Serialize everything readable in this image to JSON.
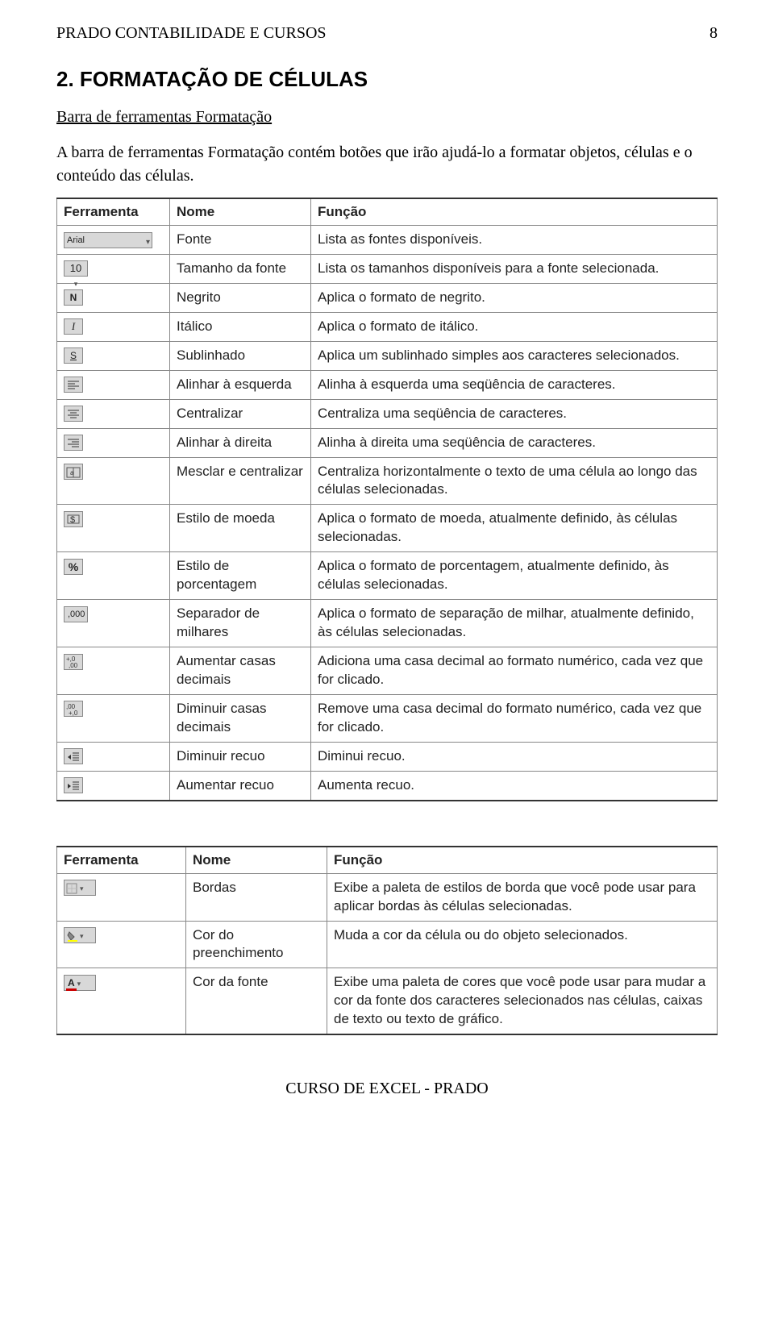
{
  "header": {
    "title": "PRADO CONTABILIDADE E CURSOS",
    "page_number": "8"
  },
  "section": {
    "title": "2. FORMATAÇÃO DE CÉLULAS",
    "toolbar_link": "Barra de ferramentas Formatação",
    "intro": "A barra de ferramentas Formatação contém botões que irão ajudá-lo a formatar objetos, células e o conteúdo das células."
  },
  "table1": {
    "headers": {
      "tool": "Ferramenta",
      "name": "Nome",
      "func": "Função"
    },
    "rows": [
      {
        "icon": "font-select",
        "icon_text": "Arial",
        "name": "Fonte",
        "func": "Lista as fontes disponíveis."
      },
      {
        "icon": "size-select",
        "icon_text": "10",
        "name": "Tamanho da fonte",
        "func": "Lista os tamanhos disponíveis para a fonte selecionada."
      },
      {
        "icon": "bold",
        "icon_text": "N",
        "name": "Negrito",
        "func": "Aplica o formato de negrito."
      },
      {
        "icon": "italic",
        "icon_text": "I",
        "name": "Itálico",
        "func": "Aplica o formato de itálico."
      },
      {
        "icon": "underline",
        "icon_text": "S",
        "name": "Sublinhado",
        "func": "Aplica um sublinhado simples aos caracteres selecionados."
      },
      {
        "icon": "align-left",
        "name": "Alinhar à esquerda",
        "func": "Alinha à esquerda uma seqüência de caracteres."
      },
      {
        "icon": "align-center",
        "name": "Centralizar",
        "func": "Centraliza uma seqüência de caracteres."
      },
      {
        "icon": "align-right",
        "name": "Alinhar à direita",
        "func": "Alinha à direita uma seqüência de caracteres."
      },
      {
        "icon": "merge-center",
        "name": "Mesclar e centralizar",
        "func": "Centraliza horizontalmente o texto de uma célula ao longo das células selecionadas."
      },
      {
        "icon": "currency",
        "name": "Estilo de moeda",
        "func": "Aplica o formato de moeda, atualmente definido, às células selecionadas."
      },
      {
        "icon": "percent",
        "icon_text": "%",
        "name": "Estilo de porcentagem",
        "func": "Aplica o formato de porcentagem, atualmente definido, às células selecionadas."
      },
      {
        "icon": "thousand",
        "icon_text": ",000",
        "name": "Separador de milhares",
        "func": "Aplica o formato de separação de milhar, atualmente definido, às células selecionadas."
      },
      {
        "icon": "inc-dec",
        "name": "Aumentar casas decimais",
        "func": "Adiciona uma casa decimal ao formato numérico, cada vez que for clicado."
      },
      {
        "icon": "dec-dec",
        "name": "Diminuir casas decimais",
        "func": "Remove uma casa decimal do formato numérico, cada vez que for clicado."
      },
      {
        "icon": "dec-indent",
        "name": "Diminuir recuo",
        "func": "Diminui recuo."
      },
      {
        "icon": "inc-indent",
        "name": "Aumentar recuo",
        "func": "Aumenta recuo."
      }
    ]
  },
  "table2": {
    "headers": {
      "tool": "Ferramenta",
      "name": "Nome",
      "func": "Função"
    },
    "rows": [
      {
        "icon": "borders",
        "name": "Bordas",
        "func": "Exibe a paleta de estilos de borda que você pode usar para aplicar bordas às células selecionadas."
      },
      {
        "icon": "fill-color",
        "name": "Cor do preenchimento",
        "func": "Muda a cor da célula ou do objeto selecionados."
      },
      {
        "icon": "font-color",
        "name": "Cor da fonte",
        "func": "Exibe uma paleta de cores que você pode usar para mudar a cor da fonte dos caracteres selecionados nas células, caixas de texto ou texto de gráfico."
      }
    ]
  },
  "footer": {
    "text": "CURSO DE EXCEL - PRADO"
  }
}
